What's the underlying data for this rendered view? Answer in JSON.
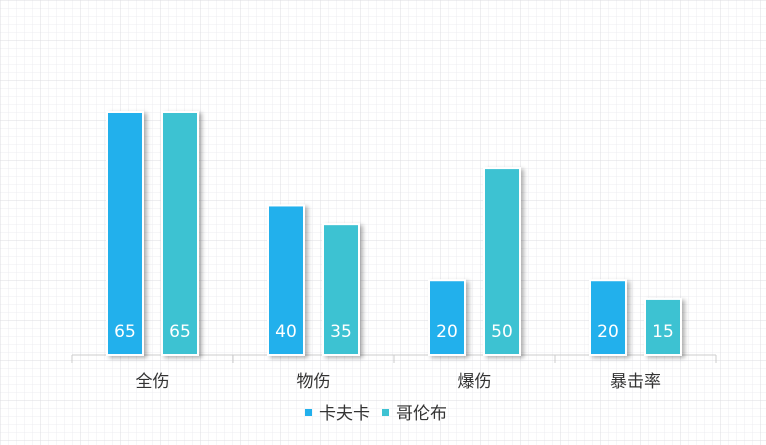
{
  "chart_data": {
    "type": "bar",
    "categories": [
      "全伤",
      "物伤",
      "爆伤",
      "暴击率"
    ],
    "series": [
      {
        "name": "卡夫卡",
        "color": "#22b0ec",
        "values": [
          65,
          40,
          20,
          20
        ]
      },
      {
        "name": "哥伦布",
        "color": "#3ec2d2",
        "values": [
          65,
          35,
          50,
          15
        ]
      }
    ],
    "legend": "bottom"
  }
}
